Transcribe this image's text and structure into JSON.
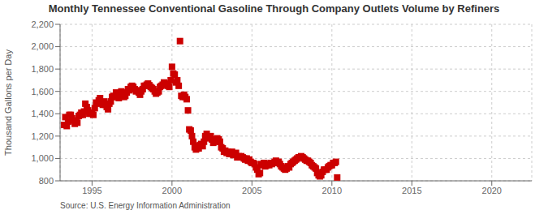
{
  "chart_data": {
    "type": "scatter",
    "title": "Monthly Tennessee Conventional Gasoline Through Company Outlets Volume by Refiners",
    "y_label": "Thousand Gallons per Day",
    "annotations": [
      "Source: U.S. Energy Information Administration"
    ],
    "color": "#cc0000",
    "marker": "square",
    "grid": true,
    "xlim": [
      1993.0,
      2022.5
    ],
    "xticks": [
      1995,
      2000,
      2005,
      2010,
      2015,
      2020
    ],
    "ylim": [
      800,
      2200
    ],
    "yticks": [
      800,
      {
        "value": 1000,
        "label": "1,000"
      },
      {
        "value": 1200,
        "label": "1,200"
      },
      {
        "value": 1400,
        "label": "1,400"
      },
      {
        "value": 1600,
        "label": "1,600"
      },
      {
        "value": 1800,
        "label": "1,800"
      },
      {
        "value": 2000,
        "label": "2,000"
      },
      {
        "value": 2200,
        "label": "2,200"
      }
    ],
    "x": [
      1993.25,
      1993.33,
      1993.42,
      1993.5,
      1993.58,
      1993.67,
      1993.75,
      1993.83,
      1993.92,
      1994.0,
      1994.08,
      1994.17,
      1994.25,
      1994.33,
      1994.42,
      1994.5,
      1994.58,
      1994.67,
      1994.75,
      1994.83,
      1994.92,
      1995.0,
      1995.08,
      1995.17,
      1995.25,
      1995.33,
      1995.42,
      1995.5,
      1995.58,
      1995.67,
      1995.75,
      1995.83,
      1995.92,
      1996.0,
      1996.08,
      1996.17,
      1996.25,
      1996.33,
      1996.42,
      1996.5,
      1996.58,
      1996.67,
      1996.75,
      1996.83,
      1996.92,
      1997.0,
      1997.08,
      1997.17,
      1997.25,
      1997.33,
      1997.42,
      1997.5,
      1997.58,
      1997.67,
      1997.75,
      1997.83,
      1997.92,
      1998.0,
      1998.08,
      1998.17,
      1998.25,
      1998.33,
      1998.42,
      1998.5,
      1998.58,
      1998.67,
      1998.75,
      1998.83,
      1998.92,
      1999.0,
      1999.08,
      1999.17,
      1999.25,
      1999.33,
      1999.42,
      1999.5,
      1999.58,
      1999.67,
      1999.75,
      1999.83,
      1999.92,
      2000.0,
      2000.08,
      2000.17,
      2000.25,
      2000.33,
      2000.42,
      2000.5,
      2000.58,
      2000.67,
      2000.75,
      2000.83,
      2000.92,
      2001.0,
      2001.08,
      2001.17,
      2001.25,
      2001.33,
      2001.42,
      2001.5,
      2001.58,
      2001.67,
      2001.75,
      2001.83,
      2001.92,
      2002.0,
      2002.08,
      2002.17,
      2002.25,
      2002.33,
      2002.42,
      2002.5,
      2002.58,
      2002.67,
      2002.75,
      2002.83,
      2002.92,
      2003.0,
      2003.08,
      2003.17,
      2003.25,
      2003.33,
      2003.42,
      2003.5,
      2003.58,
      2003.67,
      2003.75,
      2003.83,
      2003.92,
      2004.0,
      2004.08,
      2004.17,
      2004.25,
      2004.33,
      2004.42,
      2004.5,
      2004.58,
      2004.67,
      2004.75,
      2004.83,
      2004.92,
      2005.0,
      2005.08,
      2005.17,
      2005.25,
      2005.33,
      2005.42,
      2005.5,
      2005.58,
      2005.67,
      2005.75,
      2005.83,
      2005.92,
      2006.0,
      2006.08,
      2006.17,
      2006.25,
      2006.33,
      2006.42,
      2006.5,
      2006.58,
      2006.67,
      2006.75,
      2006.83,
      2006.92,
      2007.0,
      2007.08,
      2007.17,
      2007.25,
      2007.33,
      2007.42,
      2007.5,
      2007.58,
      2007.67,
      2007.75,
      2007.83,
      2007.92,
      2008.0,
      2008.08,
      2008.17,
      2008.25,
      2008.33,
      2008.42,
      2008.5,
      2008.58,
      2008.67,
      2008.75,
      2008.83,
      2008.92,
      2009.0,
      2009.08,
      2009.17,
      2009.25,
      2009.33,
      2009.42,
      2009.5,
      2009.58,
      2009.67,
      2009.75,
      2009.83,
      2009.92,
      2010.0,
      2010.08,
      2010.17,
      2010.25,
      2010.33
    ],
    "values": [
      1300,
      1370,
      1290,
      1330,
      1390,
      1390,
      1360,
      1340,
      1310,
      1330,
      1320,
      1380,
      1390,
      1410,
      1390,
      1420,
      1490,
      1460,
      1430,
      1400,
      1410,
      1400,
      1390,
      1450,
      1500,
      1490,
      1520,
      1540,
      1500,
      1480,
      1510,
      1480,
      1460,
      1440,
      1490,
      1510,
      1550,
      1560,
      1550,
      1590,
      1570,
      1540,
      1560,
      1600,
      1570,
      1550,
      1560,
      1590,
      1620,
      1610,
      1640,
      1650,
      1640,
      1620,
      1600,
      1610,
      1590,
      1570,
      1600,
      1620,
      1650,
      1650,
      1660,
      1670,
      1655,
      1640,
      1630,
      1620,
      1600,
      1580,
      1590,
      1600,
      1640,
      1650,
      1660,
      1680,
      1670,
      1660,
      1650,
      1640,
      1700,
      1820,
      1760,
      1750,
      1680,
      1700,
      1650,
      2050,
      1560,
      1550,
      1570,
      1550,
      1530,
      1430,
      1260,
      1250,
      1200,
      1150,
      1100,
      1080,
      1110,
      1090,
      1120,
      1130,
      1110,
      1150,
      1200,
      1220,
      1190,
      1180,
      1200,
      1170,
      1140,
      1160,
      1150,
      1180,
      1170,
      1150,
      1100,
      1090,
      1060,
      1070,
      1050,
      1060,
      1040,
      1050,
      1060,
      1030,
      1040,
      1050,
      1010,
      1020,
      1010,
      1020,
      1010,
      1000,
      990,
      1000,
      980,
      990,
      970,
      960,
      960,
      950,
      920,
      900,
      860,
      870,
      950,
      940,
      960,
      930,
      940,
      950,
      940,
      960,
      950,
      960,
      970,
      980,
      960,
      970,
      950,
      930,
      920,
      910,
      900,
      910,
      930,
      920,
      950,
      960,
      970,
      980,
      990,
      1000,
      1010,
      1010,
      1020,
      1010,
      1000,
      990,
      980,
      980,
      970,
      960,
      940,
      930,
      920,
      910,
      870,
      850,
      840,
      850,
      880,
      900,
      900,
      900,
      920,
      930,
      940,
      940,
      960,
      960,
      970,
      830
    ]
  }
}
